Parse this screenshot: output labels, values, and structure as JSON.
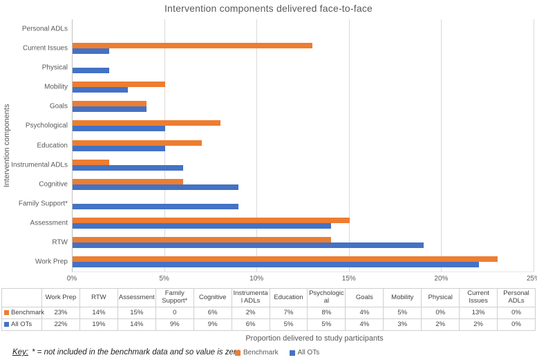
{
  "title": "Intervention components delivered face-to-face",
  "axes": {
    "y_label": "Intervention components",
    "x_label": "Proportion delivered to study participants"
  },
  "key_note": {
    "prefix": "Key:",
    "text": "* =  not included in the benchmark data and so value is zero"
  },
  "legend": {
    "items": [
      {
        "label": "Benchmark",
        "color": "#ED7D31"
      },
      {
        "label": "All OTs",
        "color": "#4472C4"
      }
    ]
  },
  "colors": {
    "benchmark_orange": "#ED7D31",
    "all_ots_blue": "#4472C4",
    "gridline": "#D9D9D9",
    "axis_text": "#595959"
  },
  "chart_data": {
    "type": "bar",
    "orientation": "horizontal",
    "title": "Intervention components delivered face-to-face",
    "xlabel": "Proportion delivered to study participants",
    "ylabel": "Intervention components",
    "xlim": [
      0,
      25
    ],
    "x_ticks": [
      "0%",
      "5%",
      "10%",
      "15%",
      "20%",
      "25%"
    ],
    "grid": true,
    "legend_position": "bottom",
    "categories_top_to_bottom": [
      "Personal ADLs",
      "Current Issues",
      "Physical",
      "Mobility",
      "Goals",
      "Psychological",
      "Education",
      "Instrumental ADLs",
      "Cognitive",
      "Family Support*",
      "Assessment",
      "RTW",
      "Work Prep"
    ],
    "series": [
      {
        "name": "Benchmark",
        "color": "#ED7D31",
        "values_pct": [
          0,
          13,
          0,
          5,
          4,
          8,
          7,
          2,
          6,
          0,
          15,
          14,
          23
        ]
      },
      {
        "name": "All OTs",
        "color": "#4472C4",
        "values_pct": [
          0,
          2,
          2,
          3,
          4,
          5,
          5,
          6,
          9,
          9,
          14,
          19,
          22
        ]
      }
    ]
  },
  "table": {
    "corner_label": "",
    "columns": [
      "Work Prep",
      "RTW",
      "Assessment",
      "Family Support*",
      "Cognitive",
      "Instrumental ADLs",
      "Education",
      "Psychological",
      "Goals",
      "Mobility",
      "Physical",
      "Current Issues",
      "Personal ADLs"
    ],
    "rows": [
      {
        "label": "Benchmark",
        "color": "#ED7D31",
        "values": [
          "23%",
          "14%",
          "15%",
          "0",
          "6%",
          "2%",
          "7%",
          "8%",
          "4%",
          "5%",
          "0%",
          "13%",
          "0%"
        ]
      },
      {
        "label": "All OTs",
        "color": "#4472C4",
        "values": [
          "22%",
          "19%",
          "14%",
          "9%",
          "9%",
          "6%",
          "5%",
          "5%",
          "4%",
          "3%",
          "2%",
          "2%",
          "0%"
        ]
      }
    ]
  }
}
